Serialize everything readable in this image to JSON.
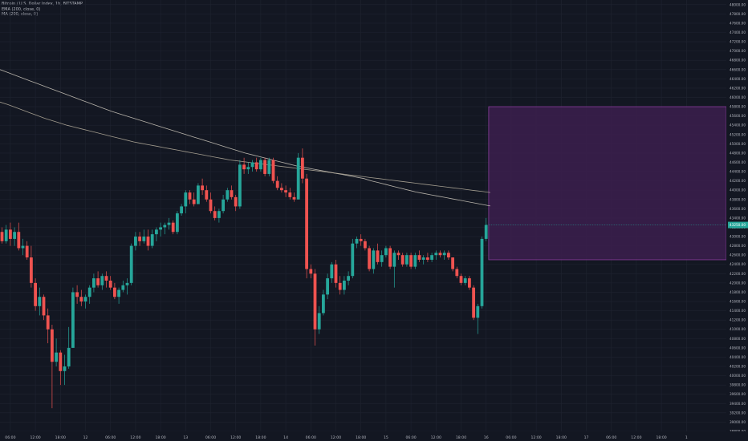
{
  "legend": {
    "line1": "Bitcoin / U.S. Dollar Index, 1h, BITSTAMP",
    "line2": "EMA (200, close, 0)",
    "line3": "MA (200, close, 0)"
  },
  "colors": {
    "background": "#131722",
    "grid": "#1f2330",
    "up": "#26a69a",
    "down": "#ef5350",
    "ema": "#c9c3b8",
    "ma": "#b3ab9a",
    "zone_fill": "#3c1f4d",
    "zone_stroke": "#8a3c9c",
    "last_price": "#26a69a"
  },
  "chart_data": {
    "type": "candlestick",
    "title": "Bitcoin / U.S. Dollar Index, 1h, BITSTAMP",
    "ylim": [
      38800,
      48100
    ],
    "y_tick_labels": [
      "38800.00",
      "39000.00",
      "39200.00",
      "39400.00",
      "39600.00",
      "39800.00",
      "40000.00",
      "40200.00",
      "40400.00",
      "40600.00",
      "40800.00",
      "41000.00",
      "41200.00",
      "41400.00",
      "41600.00",
      "41800.00",
      "42000.00",
      "42200.00",
      "42400.00",
      "42600.00",
      "42800.00",
      "43000.00",
      "43200.00",
      "43400.00",
      "43600.00",
      "43800.00",
      "44000.00",
      "44200.00",
      "44400.00",
      "44600.00",
      "44800.00",
      "45000.00",
      "45200.00",
      "45400.00",
      "45600.00",
      "45800.00",
      "46000.00",
      "46200.00",
      "46400.00",
      "46600.00",
      "46800.00",
      "47000.00",
      "47200.00",
      "47400.00",
      "47600.00",
      "47800.00",
      "48000.00"
    ],
    "x_labels": [
      {
        "i": 2,
        "label": "06:00"
      },
      {
        "i": 8,
        "label": "12:00"
      },
      {
        "i": 14,
        "label": "18:00"
      },
      {
        "i": 20,
        "label": "12"
      },
      {
        "i": 26,
        "label": "06:00"
      },
      {
        "i": 32,
        "label": "12:00"
      },
      {
        "i": 38,
        "label": "18:00"
      },
      {
        "i": 44,
        "label": "13"
      },
      {
        "i": 50,
        "label": "06:00"
      },
      {
        "i": 56,
        "label": "12:00"
      },
      {
        "i": 62,
        "label": "18:00"
      },
      {
        "i": 68,
        "label": "14"
      },
      {
        "i": 74,
        "label": "06:00"
      },
      {
        "i": 80,
        "label": "12:00"
      },
      {
        "i": 86,
        "label": "18:00"
      },
      {
        "i": 92,
        "label": "15"
      },
      {
        "i": 98,
        "label": "06:00"
      },
      {
        "i": 104,
        "label": "12:00"
      },
      {
        "i": 110,
        "label": "18:00"
      },
      {
        "i": 116,
        "label": "16"
      },
      {
        "i": 122,
        "label": "06:00"
      },
      {
        "i": 128,
        "label": "12:00"
      },
      {
        "i": 134,
        "label": "18:00"
      },
      {
        "i": 140,
        "label": "17"
      },
      {
        "i": 146,
        "label": "06:00"
      },
      {
        "i": 152,
        "label": "12:00"
      },
      {
        "i": 158,
        "label": "18:00"
      },
      {
        "i": 164,
        "label": "1"
      }
    ],
    "candles": [
      {
        "o": 43100,
        "h": 43200,
        "l": 42850,
        "c": 42900
      },
      {
        "o": 42900,
        "h": 43250,
        "l": 42850,
        "c": 43150
      },
      {
        "o": 43150,
        "h": 43300,
        "l": 42800,
        "c": 42950
      },
      {
        "o": 42950,
        "h": 43200,
        "l": 42800,
        "c": 43100
      },
      {
        "o": 43100,
        "h": 43300,
        "l": 42700,
        "c": 42750
      },
      {
        "o": 42750,
        "h": 42950,
        "l": 42600,
        "c": 42800
      },
      {
        "o": 42800,
        "h": 42900,
        "l": 42500,
        "c": 42550
      },
      {
        "o": 42550,
        "h": 42800,
        "l": 41900,
        "c": 42000
      },
      {
        "o": 42000,
        "h": 42100,
        "l": 41400,
        "c": 41500
      },
      {
        "o": 41500,
        "h": 41900,
        "l": 41300,
        "c": 41700
      },
      {
        "o": 41700,
        "h": 41750,
        "l": 41200,
        "c": 41300
      },
      {
        "o": 41300,
        "h": 41450,
        "l": 40700,
        "c": 41000
      },
      {
        "o": 41000,
        "h": 41100,
        "l": 39300,
        "c": 40300
      },
      {
        "o": 40300,
        "h": 40800,
        "l": 40200,
        "c": 40500
      },
      {
        "o": 40500,
        "h": 40550,
        "l": 39800,
        "c": 40100
      },
      {
        "o": 40100,
        "h": 40450,
        "l": 39800,
        "c": 40200
      },
      {
        "o": 40200,
        "h": 41050,
        "l": 40150,
        "c": 40600
      },
      {
        "o": 40600,
        "h": 41900,
        "l": 40600,
        "c": 41800
      },
      {
        "o": 41800,
        "h": 41950,
        "l": 41550,
        "c": 41700
      },
      {
        "o": 41700,
        "h": 41850,
        "l": 41500,
        "c": 41600
      },
      {
        "o": 41600,
        "h": 41750,
        "l": 41450,
        "c": 41700
      },
      {
        "o": 41700,
        "h": 41950,
        "l": 41550,
        "c": 41900
      },
      {
        "o": 41900,
        "h": 42200,
        "l": 41800,
        "c": 42100
      },
      {
        "o": 42100,
        "h": 42250,
        "l": 41900,
        "c": 41950
      },
      {
        "o": 41950,
        "h": 42200,
        "l": 41850,
        "c": 42150
      },
      {
        "o": 42150,
        "h": 42250,
        "l": 41900,
        "c": 42050
      },
      {
        "o": 42050,
        "h": 42150,
        "l": 41850,
        "c": 41900
      },
      {
        "o": 41900,
        "h": 42000,
        "l": 41650,
        "c": 41700
      },
      {
        "o": 41700,
        "h": 41900,
        "l": 41550,
        "c": 41850
      },
      {
        "o": 41850,
        "h": 42050,
        "l": 41800,
        "c": 41950
      },
      {
        "o": 41950,
        "h": 42100,
        "l": 41750,
        "c": 42000
      },
      {
        "o": 42000,
        "h": 42850,
        "l": 41950,
        "c": 42800
      },
      {
        "o": 42800,
        "h": 43100,
        "l": 42700,
        "c": 43000
      },
      {
        "o": 43000,
        "h": 43100,
        "l": 42800,
        "c": 42900
      },
      {
        "o": 42900,
        "h": 43150,
        "l": 42850,
        "c": 43000
      },
      {
        "o": 43000,
        "h": 43150,
        "l": 42700,
        "c": 42800
      },
      {
        "o": 42800,
        "h": 43150,
        "l": 42750,
        "c": 43050
      },
      {
        "o": 43050,
        "h": 43200,
        "l": 42900,
        "c": 43150
      },
      {
        "o": 43150,
        "h": 43300,
        "l": 43000,
        "c": 43200
      },
      {
        "o": 43200,
        "h": 43300,
        "l": 43050,
        "c": 43250
      },
      {
        "o": 43250,
        "h": 43400,
        "l": 43150,
        "c": 43300
      },
      {
        "o": 43300,
        "h": 43350,
        "l": 43050,
        "c": 43100
      },
      {
        "o": 43100,
        "h": 43550,
        "l": 43050,
        "c": 43500
      },
      {
        "o": 43500,
        "h": 43700,
        "l": 43450,
        "c": 43650
      },
      {
        "o": 43650,
        "h": 44000,
        "l": 43500,
        "c": 43950
      },
      {
        "o": 43950,
        "h": 44000,
        "l": 43700,
        "c": 43800
      },
      {
        "o": 43800,
        "h": 43950,
        "l": 43650,
        "c": 43700
      },
      {
        "o": 43700,
        "h": 44150,
        "l": 43700,
        "c": 44100
      },
      {
        "o": 44100,
        "h": 44250,
        "l": 43900,
        "c": 44000
      },
      {
        "o": 44000,
        "h": 44100,
        "l": 43750,
        "c": 43800
      },
      {
        "o": 43800,
        "h": 43950,
        "l": 43500,
        "c": 43550
      },
      {
        "o": 43550,
        "h": 43650,
        "l": 43350,
        "c": 43400
      },
      {
        "o": 43400,
        "h": 43600,
        "l": 43300,
        "c": 43550
      },
      {
        "o": 43550,
        "h": 43900,
        "l": 43500,
        "c": 43800
      },
      {
        "o": 43800,
        "h": 44050,
        "l": 43750,
        "c": 44000
      },
      {
        "o": 44000,
        "h": 44100,
        "l": 43800,
        "c": 43850
      },
      {
        "o": 43850,
        "h": 43900,
        "l": 43550,
        "c": 43650
      },
      {
        "o": 43650,
        "h": 44650,
        "l": 43600,
        "c": 44550
      },
      {
        "o": 44550,
        "h": 44700,
        "l": 44350,
        "c": 44450
      },
      {
        "o": 44450,
        "h": 44600,
        "l": 44350,
        "c": 44500
      },
      {
        "o": 44500,
        "h": 44650,
        "l": 44400,
        "c": 44600
      },
      {
        "o": 44600,
        "h": 44700,
        "l": 44400,
        "c": 44450
      },
      {
        "o": 44450,
        "h": 44700,
        "l": 44400,
        "c": 44650
      },
      {
        "o": 44650,
        "h": 44700,
        "l": 44300,
        "c": 44350
      },
      {
        "o": 44350,
        "h": 44700,
        "l": 44300,
        "c": 44650
      },
      {
        "o": 44650,
        "h": 44700,
        "l": 44150,
        "c": 44200
      },
      {
        "o": 44200,
        "h": 44300,
        "l": 44000,
        "c": 44050
      },
      {
        "o": 44050,
        "h": 44150,
        "l": 43950,
        "c": 44000
      },
      {
        "o": 44000,
        "h": 44100,
        "l": 43850,
        "c": 43950
      },
      {
        "o": 43950,
        "h": 44050,
        "l": 43800,
        "c": 43850
      },
      {
        "o": 43850,
        "h": 43950,
        "l": 43750,
        "c": 43800
      },
      {
        "o": 43800,
        "h": 44800,
        "l": 43800,
        "c": 44700
      },
      {
        "o": 44700,
        "h": 44900,
        "l": 44150,
        "c": 44250
      },
      {
        "o": 44250,
        "h": 44350,
        "l": 42100,
        "c": 42300
      },
      {
        "o": 42300,
        "h": 42400,
        "l": 42100,
        "c": 42200
      },
      {
        "o": 42200,
        "h": 42300,
        "l": 40650,
        "c": 41000
      },
      {
        "o": 41000,
        "h": 41500,
        "l": 40900,
        "c": 41350
      },
      {
        "o": 41350,
        "h": 41850,
        "l": 41300,
        "c": 41750
      },
      {
        "o": 41750,
        "h": 42200,
        "l": 41650,
        "c": 42100
      },
      {
        "o": 42100,
        "h": 42450,
        "l": 42000,
        "c": 42400
      },
      {
        "o": 42400,
        "h": 42500,
        "l": 41900,
        "c": 42000
      },
      {
        "o": 42000,
        "h": 42150,
        "l": 41750,
        "c": 41850
      },
      {
        "o": 41850,
        "h": 42150,
        "l": 41750,
        "c": 42050
      },
      {
        "o": 42050,
        "h": 42250,
        "l": 41950,
        "c": 42150
      },
      {
        "o": 42150,
        "h": 42950,
        "l": 42100,
        "c": 42850
      },
      {
        "o": 42850,
        "h": 43000,
        "l": 42750,
        "c": 42950
      },
      {
        "o": 42950,
        "h": 43050,
        "l": 42800,
        "c": 42900
      },
      {
        "o": 42900,
        "h": 42950,
        "l": 42700,
        "c": 42750
      },
      {
        "o": 42750,
        "h": 42800,
        "l": 42250,
        "c": 42300
      },
      {
        "o": 42300,
        "h": 42750,
        "l": 42200,
        "c": 42700
      },
      {
        "o": 42700,
        "h": 42850,
        "l": 42400,
        "c": 42450
      },
      {
        "o": 42450,
        "h": 42700,
        "l": 42350,
        "c": 42600
      },
      {
        "o": 42600,
        "h": 42800,
        "l": 42550,
        "c": 42750
      },
      {
        "o": 42750,
        "h": 42800,
        "l": 42300,
        "c": 42350
      },
      {
        "o": 42350,
        "h": 42700,
        "l": 41900,
        "c": 42650
      },
      {
        "o": 42650,
        "h": 42700,
        "l": 42500,
        "c": 42600
      },
      {
        "o": 42600,
        "h": 42650,
        "l": 42350,
        "c": 42400
      },
      {
        "o": 42400,
        "h": 42650,
        "l": 42350,
        "c": 42600
      },
      {
        "o": 42600,
        "h": 42650,
        "l": 42300,
        "c": 42350
      },
      {
        "o": 42350,
        "h": 42650,
        "l": 42300,
        "c": 42600
      },
      {
        "o": 42600,
        "h": 42700,
        "l": 42450,
        "c": 42500
      },
      {
        "o": 42500,
        "h": 42600,
        "l": 42400,
        "c": 42550
      },
      {
        "o": 42550,
        "h": 42650,
        "l": 42450,
        "c": 42500
      },
      {
        "o": 42500,
        "h": 42650,
        "l": 42450,
        "c": 42600
      },
      {
        "o": 42600,
        "h": 42700,
        "l": 42500,
        "c": 42650
      },
      {
        "o": 42650,
        "h": 42700,
        "l": 42550,
        "c": 42600
      },
      {
        "o": 42600,
        "h": 42700,
        "l": 42500,
        "c": 42650
      },
      {
        "o": 42650,
        "h": 42700,
        "l": 42500,
        "c": 42550
      },
      {
        "o": 42550,
        "h": 42550,
        "l": 42250,
        "c": 42300
      },
      {
        "o": 42300,
        "h": 42350,
        "l": 42100,
        "c": 42150
      },
      {
        "o": 42150,
        "h": 42200,
        "l": 41950,
        "c": 42000
      },
      {
        "o": 42000,
        "h": 42150,
        "l": 41950,
        "c": 42100
      },
      {
        "o": 42100,
        "h": 42150,
        "l": 41850,
        "c": 41900
      },
      {
        "o": 41900,
        "h": 41950,
        "l": 41200,
        "c": 41250
      },
      {
        "o": 41250,
        "h": 41550,
        "l": 40900,
        "c": 41500
      },
      {
        "o": 41500,
        "h": 43000,
        "l": 41450,
        "c": 42950
      },
      {
        "o": 42950,
        "h": 43400,
        "l": 42900,
        "c": 43250
      }
    ],
    "ema_200": [
      46600,
      46540,
      46480,
      46420,
      46360,
      46300,
      46240,
      46180,
      46120,
      46060,
      46000,
      45940,
      45880,
      45820,
      45760,
      45700,
      45650,
      45600,
      45550,
      45500,
      45450,
      45400,
      45350,
      45300,
      45250,
      45200,
      45150,
      45100,
      45050,
      45000,
      44950,
      44900,
      44850,
      44800,
      44760,
      44720,
      44680,
      44640,
      44600,
      44560,
      44520,
      44490,
      44460,
      44430,
      44400,
      44370,
      44340,
      44310,
      44280,
      44250,
      44200,
      44160,
      44120,
      44080,
      44040,
      44000,
      43960,
      43930,
      43900,
      43870,
      43840,
      43810,
      43780,
      43750,
      43720,
      43690,
      43660
    ],
    "ma_200": [
      45900,
      45850,
      45790,
      45730,
      45670,
      45610,
      45550,
      45500,
      45450,
      45400,
      45360,
      45320,
      45280,
      45240,
      45200,
      45160,
      45120,
      45080,
      45040,
      45010,
      44980,
      44950,
      44920,
      44890,
      44860,
      44830,
      44800,
      44770,
      44740,
      44710,
      44680,
      44650,
      44630,
      44610,
      44590,
      44570,
      44550,
      44530,
      44510,
      44490,
      44470,
      44450,
      44430,
      44410,
      44390,
      44370,
      44350,
      44330,
      44310,
      44290,
      44270,
      44250,
      44230,
      44210,
      44190,
      44170,
      44150,
      44130,
      44110,
      44090,
      44070,
      44050,
      44030,
      44010,
      43990,
      43970,
      43950
    ],
    "zone": {
      "price_top": 45800,
      "price_bottom": 42500,
      "start_index": 117
    },
    "last_price": {
      "value": 43250,
      "label": "43250.00"
    }
  }
}
